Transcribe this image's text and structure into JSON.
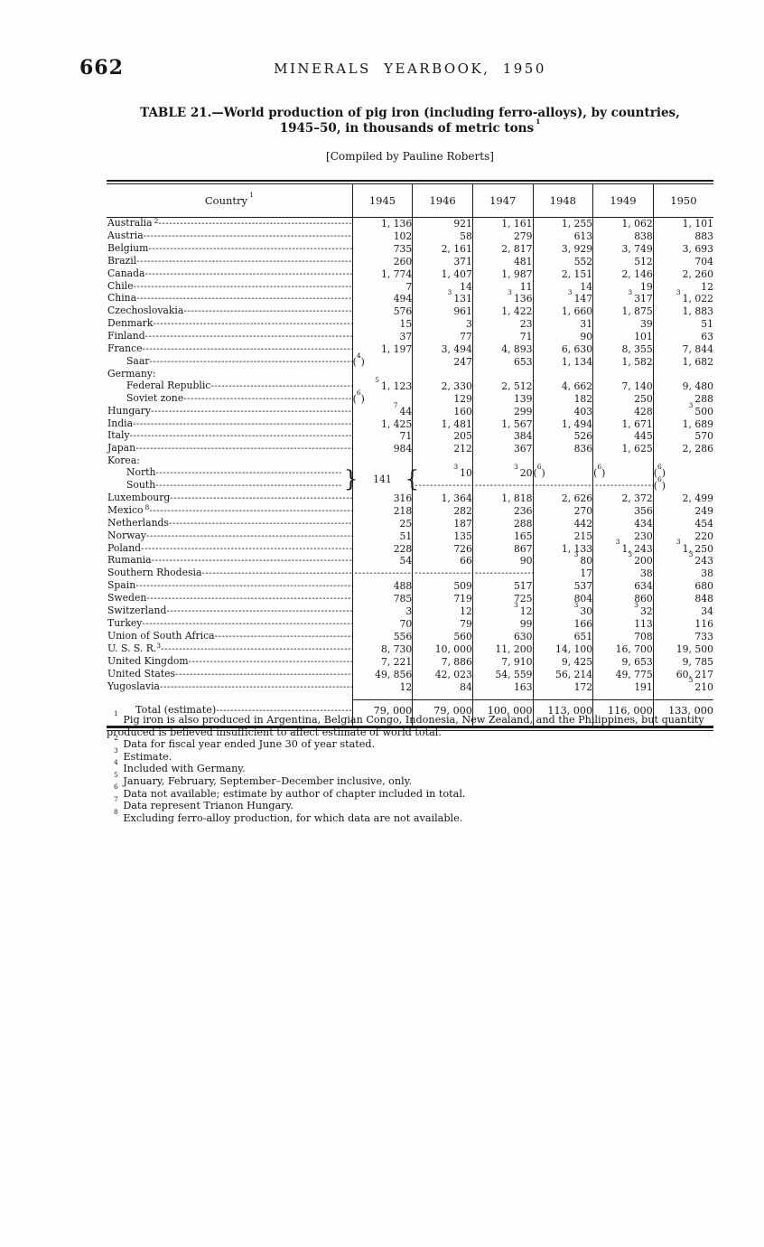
{
  "page": {
    "number": "662",
    "running_head": "MINERALS YEARBOOK, 1950"
  },
  "title": {
    "line1": "TABLE 21.—World production of pig iron (including ferro-alloys), by countries,",
    "line2": "1945–50, in thousands of metric tons",
    "line2_sup": "1",
    "compiled": "[Compiled by Pauline Roberts]"
  },
  "table": {
    "country_header": "Country",
    "country_header_sup": "1",
    "years": [
      "1945",
      "1946",
      "1947",
      "1948",
      "1949",
      "1950"
    ],
    "rows": [
      {
        "label": "Australia",
        "label_sup": "2",
        "values": [
          "1, 136",
          "921",
          "1, 161",
          "1, 255",
          "1, 062",
          "1, 101"
        ]
      },
      {
        "label": "Austria",
        "values": [
          "102",
          "58",
          "279",
          "613",
          "838",
          "883"
        ]
      },
      {
        "label": "Belgium",
        "values": [
          "735",
          "2, 161",
          "2, 817",
          "3, 929",
          "3, 749",
          "3, 693"
        ]
      },
      {
        "label": "Brazil",
        "values": [
          "260",
          "371",
          "481",
          "552",
          "512",
          "704"
        ]
      },
      {
        "label": "Canada",
        "values": [
          "1, 774",
          "1, 407",
          "1, 987",
          "2, 151",
          "2, 146",
          "2, 260"
        ]
      },
      {
        "label": "Chile",
        "values": [
          "7",
          "14",
          "11",
          "14",
          "19",
          "12"
        ]
      },
      {
        "label": "China",
        "values": [
          "494",
          {
            "sup": "3",
            "v": "131"
          },
          {
            "sup": "3",
            "v": "136"
          },
          {
            "sup": "3",
            "v": "147"
          },
          {
            "sup": "3",
            "v": "317"
          },
          {
            "sup": "3",
            "v": "1, 022"
          }
        ]
      },
      {
        "label": "Czechoslovakia",
        "values": [
          "576",
          "961",
          "1, 422",
          "1, 660",
          "1, 875",
          "1, 883"
        ]
      },
      {
        "label": "Denmark",
        "values": [
          "15",
          "3",
          "23",
          "31",
          "39",
          "51"
        ]
      },
      {
        "label": "Finland",
        "values": [
          "37",
          "77",
          "71",
          "90",
          "101",
          "63"
        ]
      },
      {
        "label": "France",
        "values": [
          "1, 197",
          "3, 494",
          "4, 893",
          "6, 630",
          "8, 355",
          "7, 844"
        ]
      },
      {
        "label": "Saar",
        "indent": 1,
        "values": [
          {
            "parensup": "4"
          },
          "247",
          "653",
          "1, 134",
          "1, 582",
          "1, 682"
        ]
      },
      {
        "label": "Germany:",
        "group": true
      },
      {
        "label": "Federal Republic",
        "indent": 1,
        "values": [
          {
            "sup": "5",
            "v": "1, 123"
          },
          "2, 330",
          "2, 512",
          "4, 662",
          "7, 140",
          "9, 480"
        ]
      },
      {
        "label": "Soviet zone",
        "indent": 1,
        "values": [
          {
            "parensup": "6"
          },
          "129",
          "139",
          "182",
          "250",
          "288"
        ]
      },
      {
        "label": "Hungary",
        "values": [
          {
            "sup": "7",
            "v": "44"
          },
          "160",
          "299",
          "403",
          "428",
          {
            "sup": "3",
            "v": "500"
          }
        ]
      },
      {
        "label": "India",
        "values": [
          "1, 425",
          "1, 481",
          "1, 567",
          "1, 494",
          "1, 671",
          "1, 689"
        ]
      },
      {
        "label": "Italy",
        "values": [
          "71",
          "205",
          "384",
          "526",
          "445",
          "570"
        ]
      },
      {
        "label": "Japan",
        "values": [
          "984",
          "212",
          "367",
          "836",
          "1, 625",
          "2, 286"
        ]
      },
      {
        "label": "Korea:",
        "group": true
      },
      {
        "label": "North",
        "indent": 1,
        "korea": true,
        "values": [
          {
            "brace": true,
            "v": "141"
          },
          {
            "sup": "3",
            "v": "10"
          },
          {
            "sup": "3",
            "v": "20"
          },
          {
            "parensup": "6"
          },
          {
            "parensup": "6"
          },
          {
            "parensup": "6"
          }
        ]
      },
      {
        "label": "South",
        "indent": 1,
        "korea": true,
        "values": [
          {
            "skip": true
          },
          {
            "dash": true
          },
          {
            "dash": true
          },
          {
            "dash": true
          },
          {
            "dash": true
          },
          {
            "parensup": "6"
          }
        ]
      },
      {
        "label": "Luxembourg",
        "values": [
          "316",
          "1, 364",
          "1, 818",
          "2, 626",
          "2, 372",
          "2, 499"
        ]
      },
      {
        "label": "Mexico",
        "label_sup": "8",
        "values": [
          "218",
          "282",
          "236",
          "270",
          "356",
          "249"
        ]
      },
      {
        "label": "Netherlands",
        "values": [
          "25",
          "187",
          "288",
          "442",
          "434",
          "454"
        ]
      },
      {
        "label": "Norway",
        "values": [
          "51",
          "135",
          "165",
          "215",
          "230",
          "220"
        ]
      },
      {
        "label": "Poland",
        "values": [
          "228",
          "726",
          "867",
          "1, 133",
          {
            "sup": "3",
            "v": "1, 243"
          },
          {
            "sup": "3",
            "v": "1, 250"
          }
        ]
      },
      {
        "label": "Rumania",
        "values": [
          "54",
          "66",
          "90",
          {
            "sup": "3",
            "v": "80"
          },
          {
            "sup": "3",
            "v": "200"
          },
          {
            "sup": "3",
            "v": "243"
          }
        ]
      },
      {
        "label": "Southern Rhodesia",
        "values": [
          {
            "dash": true
          },
          {
            "dash": true
          },
          {
            "dash": true
          },
          "17",
          "38",
          "38"
        ]
      },
      {
        "label": "Spain",
        "values": [
          "488",
          "509",
          "517",
          "537",
          "634",
          "680"
        ]
      },
      {
        "label": "Sweden",
        "values": [
          "785",
          "719",
          "725",
          "804",
          "860",
          "848"
        ]
      },
      {
        "label": "Switzerland",
        "values": [
          "3",
          "12",
          {
            "sup": "3",
            "v": "12"
          },
          {
            "sup": "3",
            "v": "30"
          },
          {
            "sup": "3",
            "v": "32"
          },
          "34"
        ]
      },
      {
        "label": "Turkey",
        "values": [
          "70",
          "79",
          "99",
          "166",
          "113",
          "116"
        ]
      },
      {
        "label": "Union of South Africa",
        "values": [
          "556",
          "560",
          "630",
          "651",
          "708",
          "733"
        ]
      },
      {
        "label": "U. S. S. R.",
        "label_sup": "3",
        "nosupspace": true,
        "values": [
          "8, 730",
          "10, 000",
          "11, 200",
          "14, 100",
          "16, 700",
          "19, 500"
        ]
      },
      {
        "label": "United Kingdom",
        "values": [
          "7, 221",
          "7, 886",
          "7, 910",
          "9, 425",
          "9, 653",
          "9, 785"
        ]
      },
      {
        "label": "United States",
        "values": [
          "49, 856",
          "42, 023",
          "54, 559",
          "56, 214",
          "49, 775",
          "60, 217"
        ]
      },
      {
        "label": "Yugoslavia",
        "values": [
          "12",
          "84",
          "163",
          "172",
          "191",
          {
            "sup": "3",
            "v": "210"
          }
        ]
      },
      {
        "label": "Total (estimate)",
        "total": true,
        "values": [
          "79, 000",
          "79, 000",
          "100, 000",
          "113, 000",
          "116, 000",
          "133, 000"
        ]
      }
    ]
  },
  "footnotes": [
    {
      "sup": "1",
      "text": "Pig iron is also produced in Argentina, Belgian Congo, Indonesia, New Zealand, and the Philippines, but quantity produced is believed insufficient to affect estimate of world total."
    },
    {
      "sup": "2",
      "text": "Data for fiscal year ended June 30 of year stated."
    },
    {
      "sup": "3",
      "text": "Estimate."
    },
    {
      "sup": "4",
      "text": "Included with Germany."
    },
    {
      "sup": "5",
      "text": "January, February, September–December inclusive, only."
    },
    {
      "sup": "6",
      "text": "Data not available; estimate by author of chapter included in total."
    },
    {
      "sup": "7",
      "text": "Data represent Trianon Hungary."
    },
    {
      "sup": "8",
      "text": "Excluding ferro-alloy production, for which data are not available."
    }
  ]
}
